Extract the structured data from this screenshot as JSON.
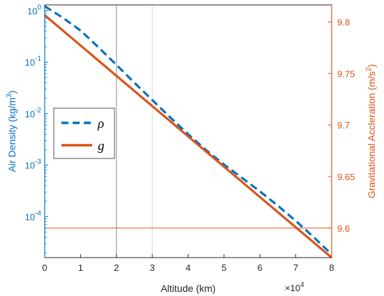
{
  "chart_data": {
    "type": "line",
    "xlabel": "Altitude (km)",
    "x_multiplier": "×10",
    "x_multiplier_exp": "4",
    "x_range": [
      0,
      80000
    ],
    "x_ticks": [
      0,
      10000,
      20000,
      30000,
      40000,
      50000,
      60000,
      70000,
      80000
    ],
    "x_tick_labels": [
      "0",
      "1",
      "2",
      "3",
      "4",
      "5",
      "6",
      "7",
      "8"
    ],
    "left_axis": {
      "label": "Air Density (kg/m",
      "label_sup": "3",
      "label_end": ")",
      "scale": "log",
      "range": [
        1.6e-05,
        1.3
      ],
      "ticks": [
        1,
        0.1,
        0.01,
        0.001,
        0.0001
      ],
      "tick_base": [
        "10",
        "10",
        "10",
        "10",
        "10"
      ],
      "tick_exp": [
        "0",
        "-1",
        "-2",
        "-3",
        "-4"
      ],
      "color": "#0072BD"
    },
    "right_axis": {
      "label": "Gravitational Accleration (m/s",
      "label_sup": "2",
      "label_end": ")",
      "scale": "linear",
      "range": [
        9.5714,
        9.8166
      ],
      "ticks": [
        9.6,
        9.65,
        9.7,
        9.75,
        9.8
      ],
      "tick_labels": [
        "9.6",
        "9.65",
        "9.7",
        "9.75",
        "9.8"
      ],
      "color": "#D95319"
    },
    "series": [
      {
        "name": "ρ",
        "axis": "left",
        "style": "dashed",
        "color": "#0072BD",
        "x": [
          0,
          5000,
          10000,
          15000,
          20000,
          25000,
          30000,
          35000,
          40000,
          45000,
          50000,
          55000,
          60000,
          65000,
          70000,
          75000,
          80000
        ],
        "values": [
          1.225,
          0.736,
          0.4135,
          0.1948,
          0.08891,
          0.04008,
          0.01841,
          0.008463,
          0.003996,
          0.001966,
          0.001027,
          0.000568,
          0.0003097,
          0.0001632,
          8.28e-05,
          3.99e-05,
          1.85e-05
        ]
      },
      {
        "name": "g",
        "axis": "right",
        "style": "solid",
        "color": "#D95319",
        "x": [
          0,
          80000
        ],
        "values": [
          9.8066,
          9.5714
        ]
      }
    ],
    "reference_lines": [
      {
        "orientation": "vertical",
        "axis": "x",
        "value": 20000,
        "color": "#8a8a8a"
      },
      {
        "orientation": "vertical",
        "axis": "x",
        "value": 30000,
        "color": "#d6d6d6"
      },
      {
        "orientation": "horizontal",
        "axis": "right",
        "value": 9.6,
        "color": "#D95319"
      }
    ],
    "legend_position": "left"
  }
}
